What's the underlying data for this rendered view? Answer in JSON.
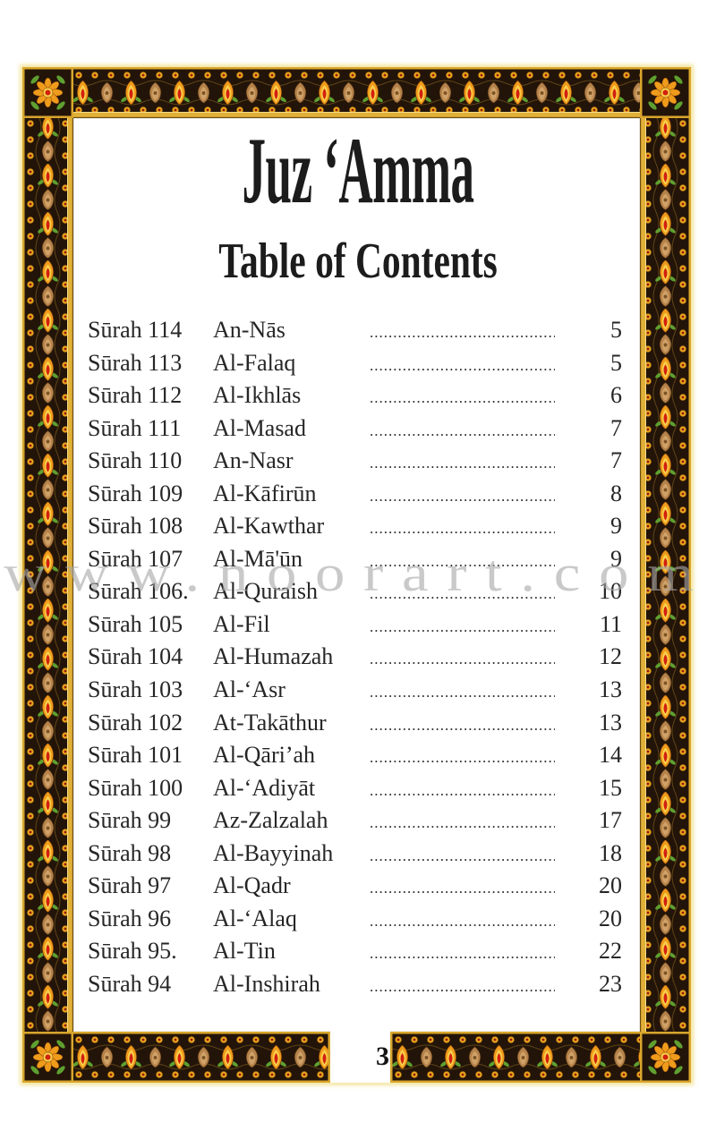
{
  "header": {
    "title": "Juz ‘Amma",
    "subtitle": "Table of Contents"
  },
  "toc": {
    "leader_dots": "............................................................",
    "rows": [
      {
        "surah": "Sūrah 114",
        "name": "An-Nās",
        "page": "5"
      },
      {
        "surah": "Sūrah 113",
        "name": "Al-Falaq",
        "page": "5"
      },
      {
        "surah": "Sūrah 112",
        "name": "Al-Ikhlās",
        "page": "6"
      },
      {
        "surah": "Sūrah 111",
        "name": "Al-Masad",
        "page": "7"
      },
      {
        "surah": "Sūrah 110",
        "name": "An-Nasr",
        "page": "7"
      },
      {
        "surah": "Sūrah 109",
        "name": "Al-Kāfirūn",
        "page": "8"
      },
      {
        "surah": "Sūrah 108",
        "name": "Al-Kawthar",
        "page": "9"
      },
      {
        "surah": "Sūrah 107",
        "name": "Al-Mā'ūn",
        "page": "9"
      },
      {
        "surah": "Sūrah 106.",
        "name": "Al-Quraish",
        "page": "10"
      },
      {
        "surah": "Sūrah 105",
        "name": "Al-Fil",
        "page": "11"
      },
      {
        "surah": "Sūrah 104",
        "name": "Al-Humazah",
        "page": "12"
      },
      {
        "surah": "Sūrah 103",
        "name": "Al-‘Asr",
        "page": "13"
      },
      {
        "surah": "Sūrah 102",
        "name": "At-Takāthur",
        "page": "13"
      },
      {
        "surah": "Sūrah 101",
        "name": "Al-Qāri’ah",
        "page": "14"
      },
      {
        "surah": "Sūrah 100",
        "name": "Al-‘Adiyāt",
        "page": "15"
      },
      {
        "surah": "Sūrah 99",
        "name": "Az-Zalzalah",
        "page": "17"
      },
      {
        "surah": "Sūrah 98",
        "name": "Al-Bayyinah",
        "page": "18"
      },
      {
        "surah": "Sūrah 97",
        "name": "Al-Qadr",
        "page": "20"
      },
      {
        "surah": "Sūrah 96",
        "name": "Al-‘Alaq",
        "page": "20"
      },
      {
        "surah": "Sūrah 95.",
        "name": "Al-Tin",
        "page": "22"
      },
      {
        "surah": "Sūrah 94",
        "name": "Al-Inshirah",
        "page": "23"
      }
    ]
  },
  "watermark": {
    "text": "www.noorart.com"
  },
  "footer": {
    "page_number": "3"
  },
  "colors": {
    "border_background": "#231409",
    "border_gold": "#d9a62c",
    "border_gold_light": "#f3dc8a",
    "petal_orange": "#ef9b1b",
    "petal_yellow": "#f8cf4a",
    "flower_red_core": "#d2200f",
    "palmette_tan": "#b5824b",
    "palmette_light": "#d0a267",
    "leaf_green": "#5fa030",
    "mini_flower_yellow": "#e9a41c",
    "outer_glow": "#f0de82",
    "text_black": "#222222",
    "watermark_gray": "#a8a8a8"
  }
}
